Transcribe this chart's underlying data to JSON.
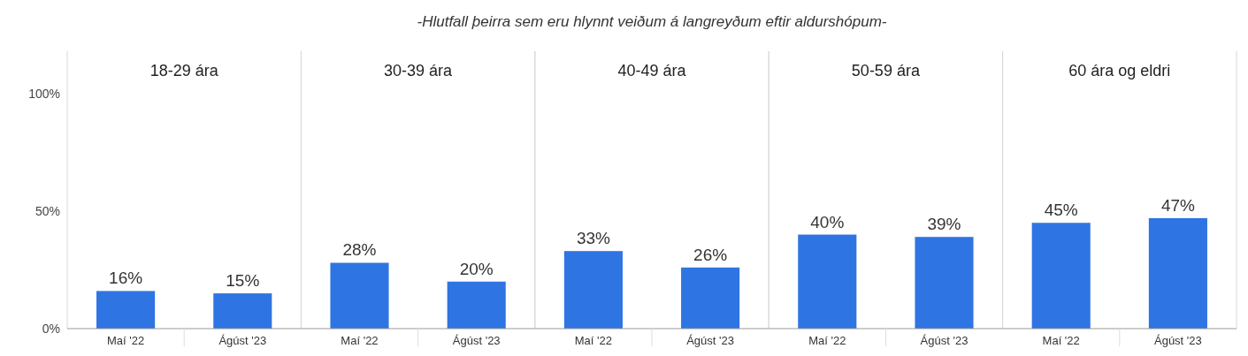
{
  "chart_data": [
    {
      "type": "bar",
      "title": "18-29 ára",
      "annotations": [
        "-Hlutfall þeirra sem eru hlynnt veiðum á langreyðum eftir aldurshópum-"
      ],
      "categories": [
        "Maí '22",
        "Ágúst '23"
      ],
      "values": [
        16,
        15
      ],
      "value_labels": [
        "16%",
        "15%"
      ],
      "color": "#2f74e3",
      "ylim": [
        0,
        118
      ],
      "yticks": [
        {
          "value": 0,
          "label": "0%"
        },
        {
          "value": 50,
          "label": "50%"
        },
        {
          "value": 100,
          "label": "100%"
        }
      ],
      "grid": false
    },
    {
      "type": "bar",
      "title": "30-39 ára",
      "categories": [
        "Maí '22",
        "Ágúst '23"
      ],
      "values": [
        28,
        20
      ],
      "value_labels": [
        "28%",
        "20%"
      ],
      "color": "#2f74e3",
      "ylim": [
        0,
        118
      ],
      "tick_labels": "x",
      "grid": false
    },
    {
      "type": "bar",
      "title": "40-49 ára",
      "categories": [
        "Maí '22",
        "Ágúst '23"
      ],
      "values": [
        33,
        26
      ],
      "value_labels": [
        "33%",
        "26%"
      ],
      "color": "#2f74e3",
      "ylim": [
        0,
        118
      ],
      "tick_labels": "x",
      "grid": false
    },
    {
      "type": "bar",
      "title": "50-59 ára",
      "categories": [
        "Maí '22",
        "Ágúst '23"
      ],
      "values": [
        40,
        39
      ],
      "value_labels": [
        "40%",
        "39%"
      ],
      "color": "#2f74e3",
      "ylim": [
        0,
        118
      ],
      "tick_labels": "x",
      "grid": false
    },
    {
      "type": "bar",
      "title": "60 ára og eldri",
      "categories": [
        "Maí '22",
        "Ágúst '23"
      ],
      "values": [
        45,
        47
      ],
      "value_labels": [
        "45%",
        "47%"
      ],
      "color": "#2f74e3",
      "ylim": [
        0,
        118
      ],
      "tick_labels": "x",
      "grid": false
    }
  ]
}
